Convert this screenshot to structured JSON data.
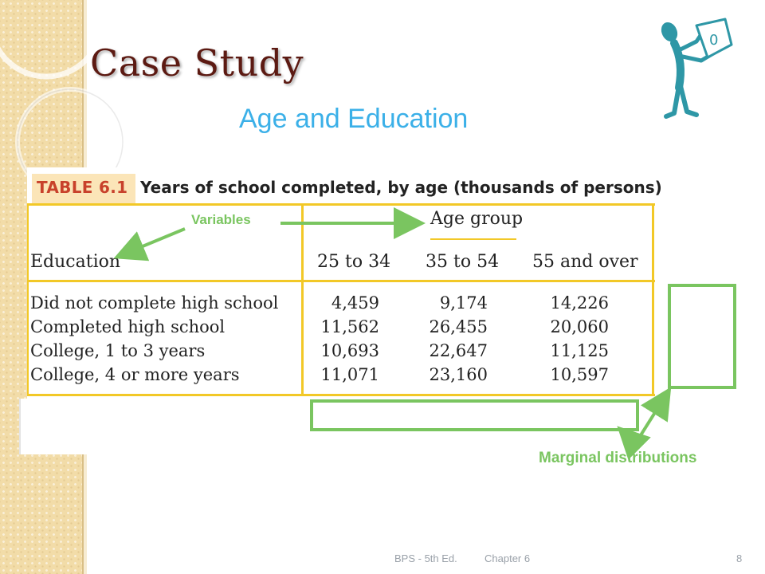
{
  "slide": {
    "title": "Case Study",
    "subtitle": "Age and Education"
  },
  "table": {
    "label": "TABLE 6.1",
    "caption": "Years of school completed, by age (thousands of persons)",
    "spanning_header": "Age group",
    "row_header": "Education",
    "columns": [
      "25 to 34",
      "35 to 54",
      "55 and over"
    ],
    "rows": [
      {
        "label": "Did not complete high school",
        "values": [
          "4,459",
          "9,174",
          "14,226"
        ]
      },
      {
        "label": "Completed high school",
        "values": [
          "11,562",
          "26,455",
          "20,060"
        ]
      },
      {
        "label": "College, 1 to 3 years",
        "values": [
          "10,693",
          "22,647",
          "11,125"
        ]
      },
      {
        "label": "College, 4 or more years",
        "values": [
          "11,071",
          "23,160",
          "10,597"
        ]
      }
    ]
  },
  "annotations": {
    "variables": "Variables",
    "marginal": "Marginal distributions"
  },
  "footer": {
    "source": "BPS - 5th Ed.",
    "chapter": "Chapter 6",
    "page": "8"
  },
  "colors": {
    "title": "#5c1a12",
    "subtitle": "#3bb0e8",
    "rule": "#f2c827",
    "annotation": "#7ac560",
    "icon": "#2e97a6"
  },
  "icons": [
    "person-holding-sign-icon",
    "decorative-circles"
  ]
}
